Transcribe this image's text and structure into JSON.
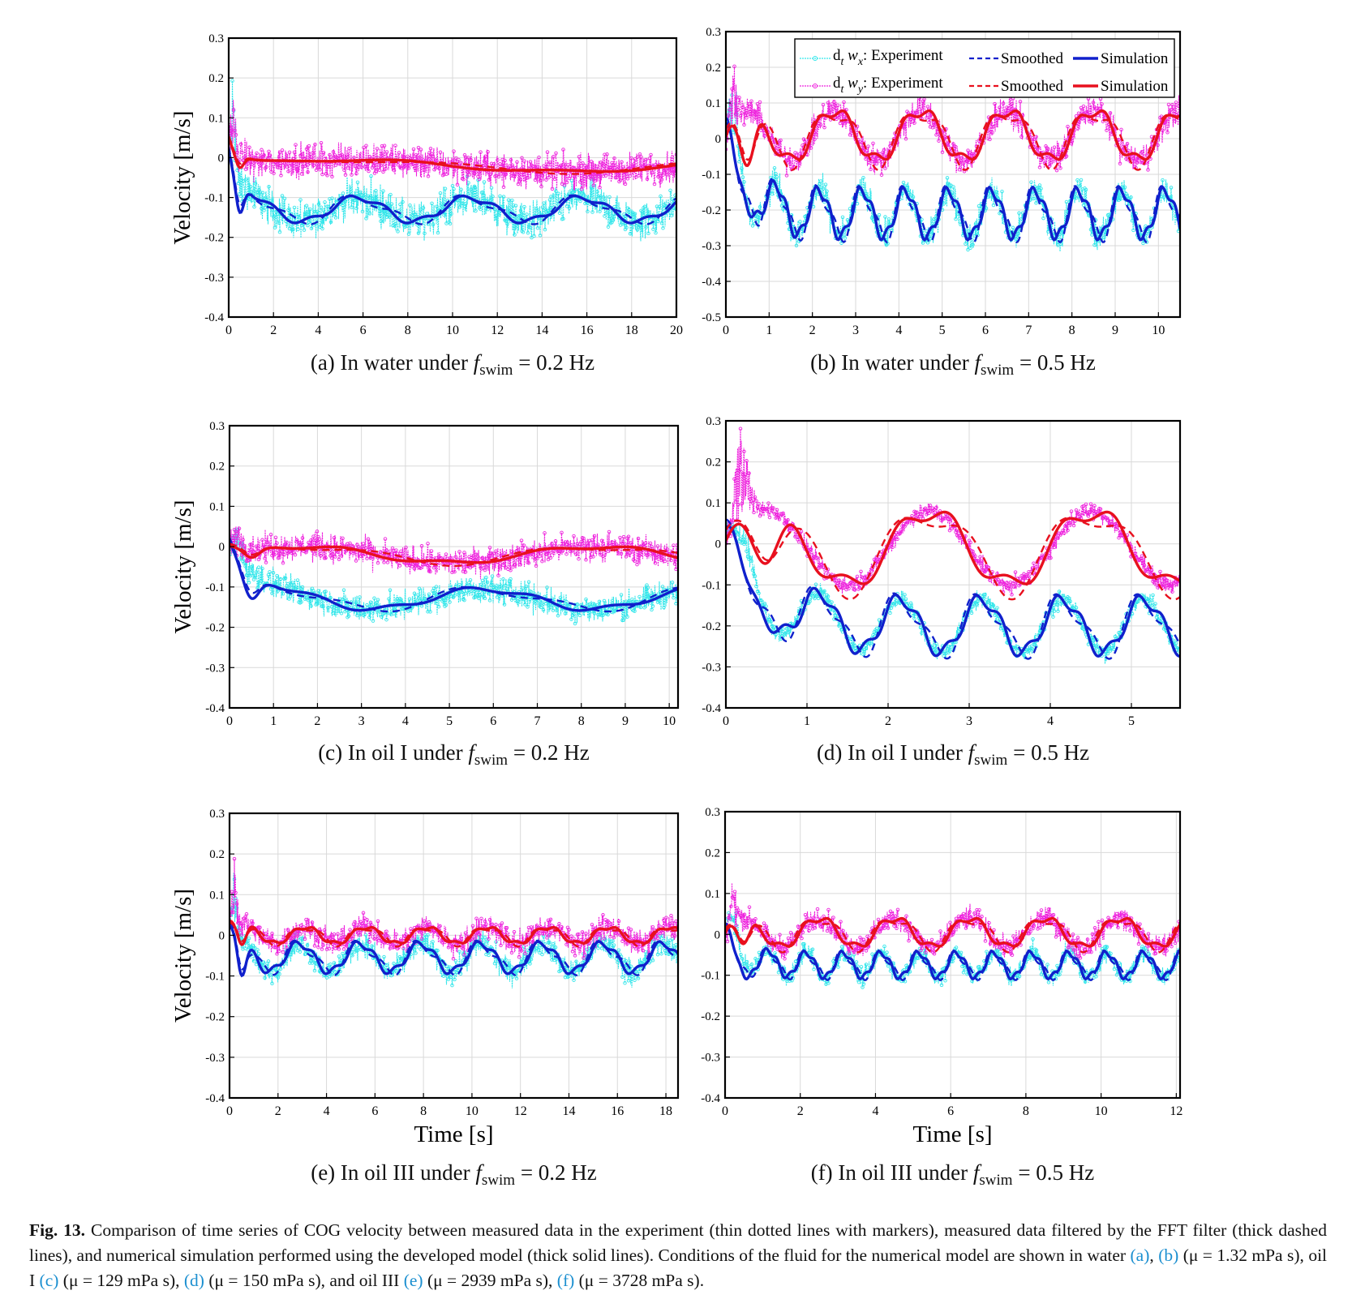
{
  "chart_data": [
    {
      "id": "a",
      "type": "line",
      "caption_prefix": "(a)",
      "caption_text": "In water under",
      "caption_value": "= 0.2 Hz",
      "ylabel": "Velocity [m/s]",
      "xlabel": "",
      "xlim": [
        0,
        20
      ],
      "ylim": [
        -0.4,
        0.3
      ],
      "xticks": [
        0,
        2,
        4,
        6,
        8,
        10,
        12,
        14,
        16,
        18,
        20
      ],
      "yticks": [
        -0.4,
        -0.3,
        -0.2,
        -0.1,
        0,
        0.1,
        0.2,
        0.3
      ],
      "ytick_labels": [
        "-0.4",
        "-0.3",
        "-0.2",
        "-0.1",
        "0",
        "0.1",
        "0.2",
        "0.3"
      ],
      "series": {
        "vx": {
          "offset": -0.13,
          "amp": 0.03,
          "freq": 0.2,
          "start": 0.0,
          "spike": 0.25,
          "dip": -0.2,
          "noise": 0.07
        },
        "vy": {
          "offset": -0.02,
          "amp": 0.015,
          "freq": 0.05,
          "start": 0.05,
          "spike": 0.15,
          "dip": -0.05,
          "noise": 0.06
        }
      }
    },
    {
      "id": "b",
      "type": "line",
      "caption_prefix": "(b)",
      "caption_text": "In water under",
      "caption_value": "= 0.5 Hz",
      "ylabel": "",
      "xlabel": "",
      "xlim": [
        0,
        10.5
      ],
      "ylim": [
        -0.5,
        0.3
      ],
      "xticks": [
        0,
        1,
        2,
        3,
        4,
        5,
        6,
        7,
        8,
        9,
        10
      ],
      "yticks": [
        -0.5,
        -0.4,
        -0.3,
        -0.2,
        -0.1,
        0,
        0.1,
        0.2,
        0.3
      ],
      "ytick_labels": [
        "-0.5",
        "-0.4",
        "-0.3",
        "-0.2",
        "-0.1",
        "0",
        "0.1",
        "0.2",
        "0.3"
      ],
      "legend": {
        "rows": [
          {
            "sym": "d",
            "sub1": "t",
            "var": "w",
            "sub2": "x",
            "exp": ": Experiment",
            "smoothed": "Smoothed",
            "sim": "Simulation",
            "color": "blue"
          },
          {
            "sym": "d",
            "sub1": "t",
            "var": "w",
            "sub2": "y",
            "exp": ": Experiment",
            "smoothed": "Smoothed",
            "sim": "Simulation",
            "color": "red"
          }
        ],
        "placement": "top-right"
      },
      "series": {
        "vx": {
          "offset": -0.21,
          "amp": 0.065,
          "freq": 1.0,
          "start": 0.0,
          "spike": 0.2,
          "dip": -0.2,
          "noise": 0.06
        },
        "vy": {
          "offset": 0.01,
          "amp": 0.07,
          "freq": 0.5,
          "start": 0.0,
          "spike": 0.2,
          "dip": -0.15,
          "noise": 0.06
        }
      }
    },
    {
      "id": "c",
      "type": "line",
      "caption_prefix": "(c)",
      "caption_text": "In oil I under",
      "caption_value": "= 0.2 Hz",
      "ylabel": "Velocity [m/s]",
      "xlabel": "",
      "xlim": [
        0,
        10.2
      ],
      "ylim": [
        -0.4,
        0.3
      ],
      "xticks": [
        0,
        1,
        2,
        3,
        4,
        5,
        6,
        7,
        8,
        9,
        10
      ],
      "yticks": [
        -0.4,
        -0.3,
        -0.2,
        -0.1,
        0,
        0.1,
        0.2,
        0.3
      ],
      "ytick_labels": [
        "-0.4",
        "-0.3",
        "-0.2",
        "-0.1",
        "0",
        "0.1",
        "0.2",
        "0.3"
      ],
      "series": {
        "vx": {
          "offset": -0.13,
          "amp": 0.025,
          "freq": 0.2,
          "start": 0.0,
          "spike": 0.05,
          "dip": -0.18,
          "noise": 0.05
        },
        "vy": {
          "offset": -0.02,
          "amp": 0.02,
          "freq": 0.15,
          "start": 0.0,
          "spike": 0.05,
          "dip": -0.05,
          "noise": 0.05
        }
      }
    },
    {
      "id": "d",
      "type": "line",
      "caption_prefix": "(d)",
      "caption_text": "In oil I under",
      "caption_value": "= 0.5 Hz",
      "ylabel": "",
      "xlabel": "",
      "xlim": [
        0,
        5.6
      ],
      "ylim": [
        -0.4,
        0.3
      ],
      "xticks": [
        0,
        1,
        2,
        3,
        4,
        5
      ],
      "yticks": [
        -0.4,
        -0.3,
        -0.2,
        -0.1,
        0,
        0.1,
        0.2,
        0.3
      ],
      "ytick_labels": [
        "-0.4",
        "-0.3",
        "-0.2",
        "-0.1",
        "0",
        "0.1",
        "0.2",
        "0.3"
      ],
      "series": {
        "vx": {
          "offset": -0.2,
          "amp": 0.065,
          "freq": 1.0,
          "start": 0.0,
          "spike": 0.05,
          "dip": -0.2,
          "noise": 0.03
        },
        "vy": {
          "offset": -0.01,
          "amp": 0.09,
          "freq": 0.5,
          "start": 0.0,
          "spike": 0.3,
          "dip": -0.1,
          "noise": 0.03
        }
      }
    },
    {
      "id": "e",
      "type": "line",
      "caption_prefix": "(e)",
      "caption_text": "In oil III under",
      "caption_value": "= 0.2 Hz",
      "ylabel": "Velocity [m/s]",
      "xlabel": "Time [s]",
      "xlim": [
        0,
        18.5
      ],
      "ylim": [
        -0.4,
        0.3
      ],
      "xticks": [
        0,
        2,
        4,
        6,
        8,
        10,
        12,
        14,
        16,
        18
      ],
      "yticks": [
        -0.4,
        -0.3,
        -0.2,
        -0.1,
        0,
        0.1,
        0.2,
        0.3
      ],
      "ytick_labels": [
        "-0.4",
        "-0.3",
        "-0.2",
        "-0.1",
        "0",
        "0.1",
        "0.2",
        "0.3"
      ],
      "series": {
        "vx": {
          "offset": -0.055,
          "amp": 0.035,
          "freq": 0.4,
          "start": 0.0,
          "spike": 0.22,
          "dip": -0.15,
          "noise": 0.045
        },
        "vy": {
          "offset": 0.0,
          "amp": 0.02,
          "freq": 0.4,
          "start": 0.03,
          "spike": 0.22,
          "dip": -0.05,
          "noise": 0.045
        }
      }
    },
    {
      "id": "f",
      "type": "line",
      "caption_prefix": "(f)",
      "caption_text": "In oil III under",
      "caption_value": "= 0.5 Hz",
      "ylabel": "",
      "xlabel": "Time [s]",
      "xlim": [
        0,
        12.1
      ],
      "ylim": [
        -0.4,
        0.3
      ],
      "xticks": [
        0,
        2,
        4,
        6,
        8,
        10,
        12
      ],
      "yticks": [
        -0.4,
        -0.3,
        -0.2,
        -0.1,
        0,
        0.1,
        0.2,
        0.3
      ],
      "ytick_labels": [
        "-0.4",
        "-0.3",
        "-0.2",
        "-0.1",
        "0",
        "0.1",
        "0.2",
        "0.3"
      ],
      "series": {
        "vx": {
          "offset": -0.075,
          "amp": 0.03,
          "freq": 1.0,
          "start": 0.0,
          "spike": 0.08,
          "dip": -0.12,
          "noise": 0.035
        },
        "vy": {
          "offset": 0.005,
          "amp": 0.035,
          "freq": 0.5,
          "start": 0.0,
          "spike": 0.13,
          "dip": -0.05,
          "noise": 0.04
        }
      }
    }
  ],
  "colors": {
    "vx_exp": "#33e6ea",
    "vx_line": "#1020cc",
    "vy_exp": "#ee22dd",
    "vy_line": "#e8101e",
    "grid": "#d9d9d9",
    "caption_ref": "#1b8fd0"
  },
  "caption": {
    "label": "Fig. 13.",
    "text1": "Comparison of time series of COG velocity between measured data in the experiment (thin dotted lines with markers), measured data filtered by the FFT filter (thick dashed lines), and numerical simulation performed using the developed model (thick solid lines). Conditions of the fluid for the numerical model are shown in water",
    "ref_a": "(a)",
    "sep1": ",",
    "ref_b": "(b)",
    "mu1": "(μ = 1.32 mPa  s), oil I",
    "ref_c": "(c)",
    "mu2": "(μ = 129 mPa  s),",
    "ref_d": "(d)",
    "mu3": "(μ = 150 mPa  s), and oil III",
    "ref_e": "(e)",
    "mu4": "(μ = 2939 mPa  s),",
    "ref_f": "(f)",
    "mu5": "(μ = 3728 mPa  s)."
  },
  "fswim_symbol": "f",
  "fswim_sub": "swim"
}
